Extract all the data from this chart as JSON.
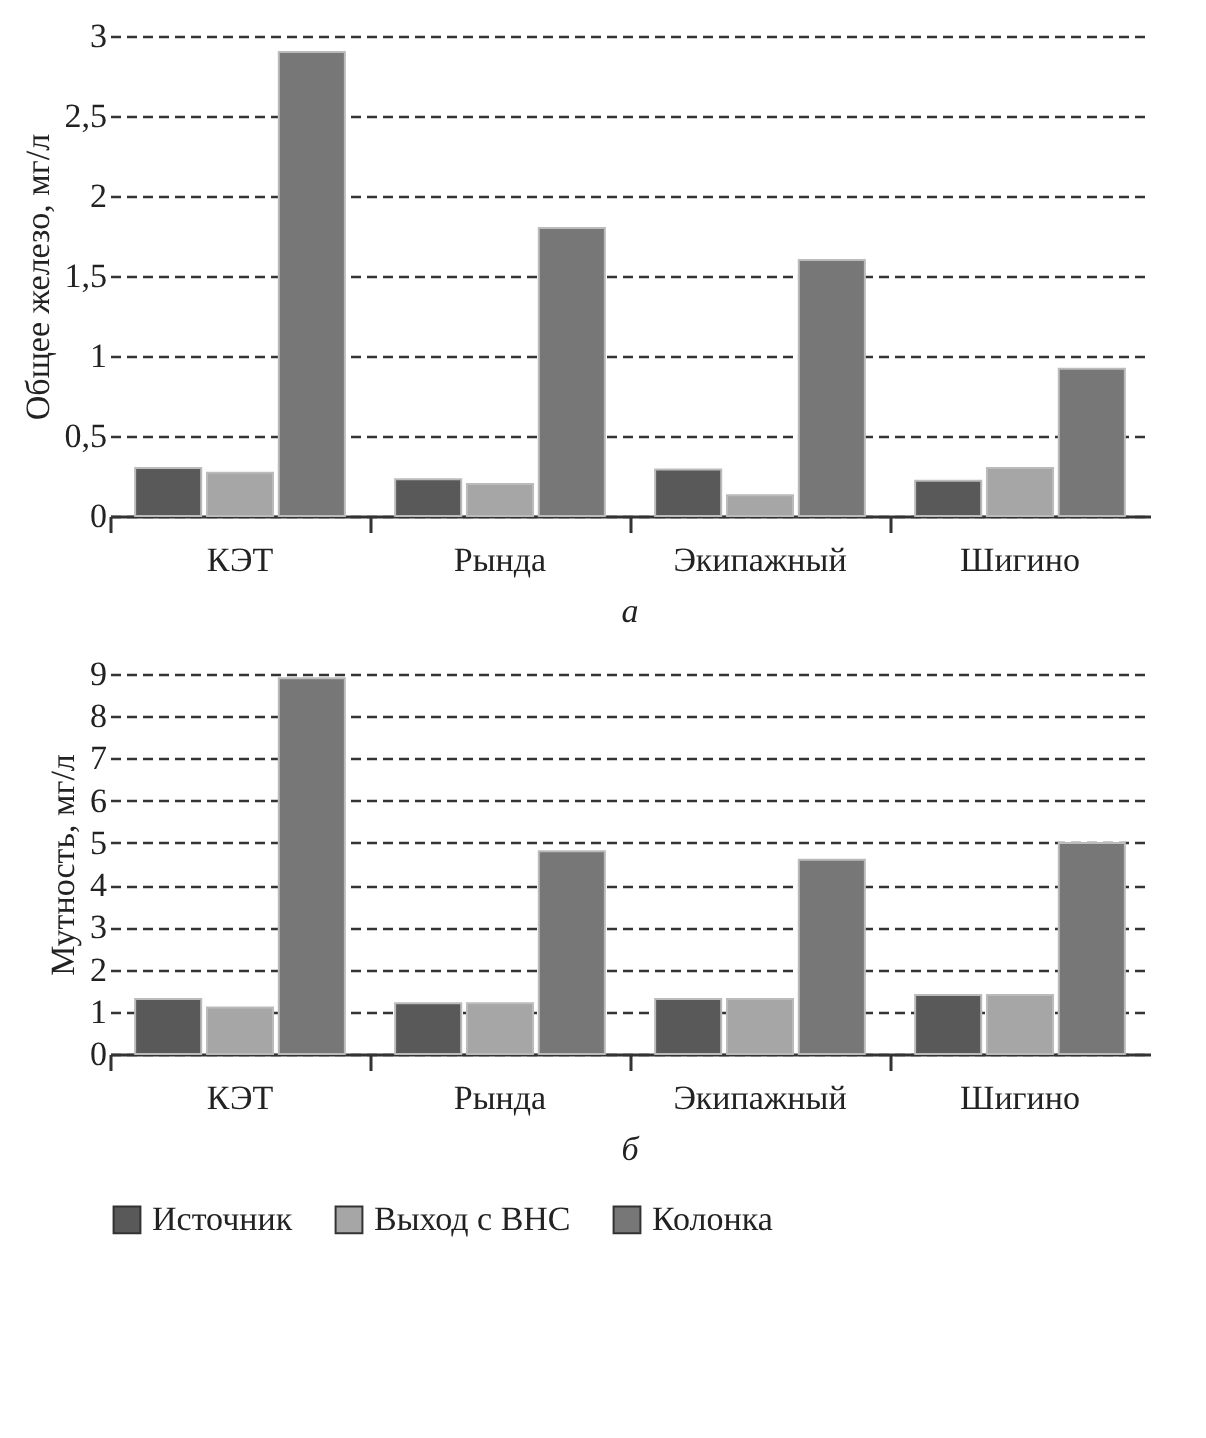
{
  "chart_data": [
    {
      "type": "bar",
      "title": "а",
      "ylabel": "Общее железо, мг/л",
      "categories": [
        "КЭТ",
        "Рында",
        "Экипажный",
        "Шигино"
      ],
      "ylim": [
        0,
        3
      ],
      "yticks": [
        0,
        {
          "value": 0.5,
          "label": "0,5"
        },
        1,
        {
          "value": 1.5,
          "label": "1,5"
        },
        2,
        {
          "value": 2.5,
          "label": "2,5"
        },
        3
      ],
      "grid": "y",
      "legend": "bottom",
      "series": [
        {
          "name": "Источник",
          "color": "#595959",
          "values": [
            0.3,
            0.23,
            0.29,
            0.22
          ]
        },
        {
          "name": "Выход с ВНС",
          "color": "#a6a6a6",
          "values": [
            0.27,
            0.2,
            0.13,
            0.3
          ]
        },
        {
          "name": "Колонка",
          "color": "#777777",
          "values": [
            2.9,
            1.8,
            1.6,
            0.92
          ]
        }
      ]
    },
    {
      "type": "bar",
      "title": "б",
      "ylabel": "Мутность, мг/л",
      "categories": [
        "КЭТ",
        "Рында",
        "Экипажный",
        "Шигино"
      ],
      "ylim": [
        0,
        9
      ],
      "yticks": [
        0,
        1,
        2,
        3,
        4,
        5,
        6,
        7,
        8,
        9
      ],
      "grid": "y",
      "legend": "bottom",
      "series": [
        {
          "name": "Источник",
          "color": "#595959",
          "values": [
            1.3,
            1.2,
            1.3,
            1.4
          ]
        },
        {
          "name": "Выход с ВНС",
          "color": "#a6a6a6",
          "values": [
            1.1,
            1.2,
            1.3,
            1.4
          ]
        },
        {
          "name": "Колонка",
          "color": "#777777",
          "values": [
            8.9,
            4.8,
            4.6,
            5.0
          ]
        }
      ]
    }
  ]
}
